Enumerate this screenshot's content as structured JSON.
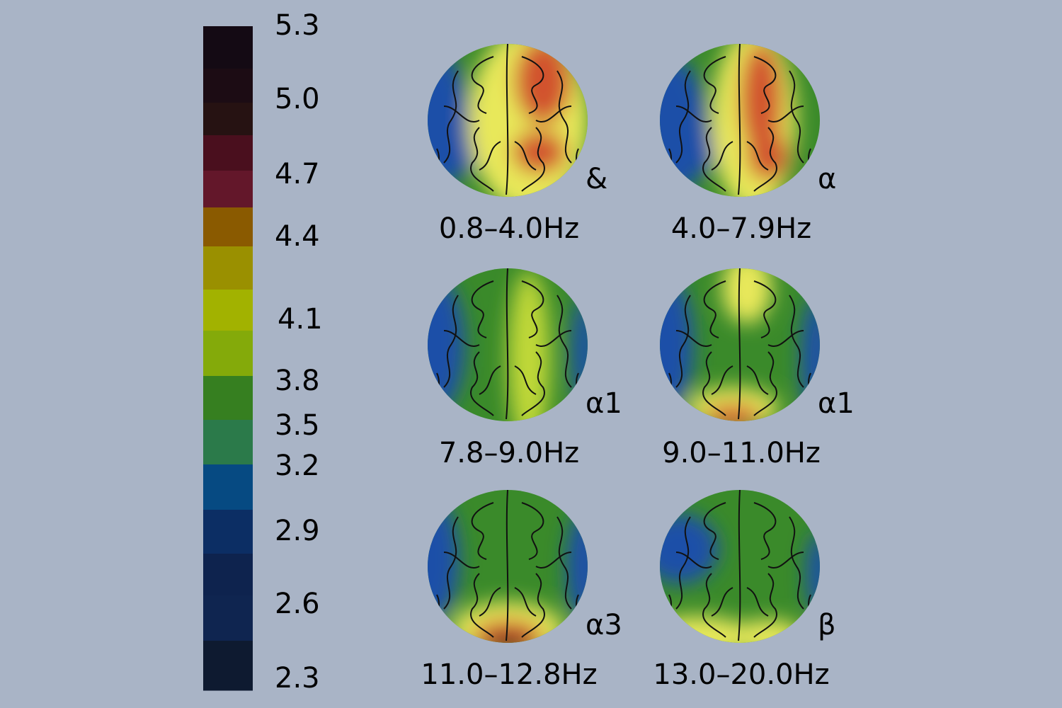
{
  "colorbar": {
    "labels": [
      "5.3",
      "5.0",
      "4.7",
      "4.4",
      "4.1",
      "3.8",
      "3.5",
      "3.2",
      "2.9",
      "2.6",
      "2.3"
    ],
    "colors": [
      "#140a14",
      "#1c0c14",
      "#261212",
      "#4a0f1e",
      "#63172a",
      "#8a5a00",
      "#9a9000",
      "#a2b200",
      "#84aa0a",
      "#367f20",
      "#2b7a4a",
      "#064a82",
      "#0c2e64",
      "#0e234e",
      "#0f2550",
      "#0e1a30"
    ]
  },
  "maps": [
    {
      "band": "&",
      "range": "0.8–4.0Hz"
    },
    {
      "band": "α",
      "range": "4.0–7.9Hz"
    },
    {
      "band": "α1",
      "range": "7.8–9.0Hz"
    },
    {
      "band": "α1",
      "range": "9.0–11.0Hz"
    },
    {
      "band": "α3",
      "range": "11.0–12.8Hz"
    },
    {
      "band": "β",
      "range": "13.0–20.0Hz"
    }
  ]
}
